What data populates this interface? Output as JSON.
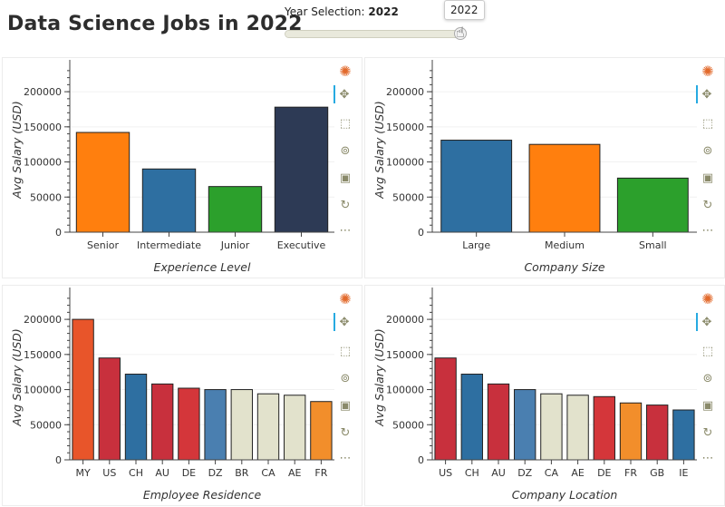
{
  "app": {
    "title": "Data Science Jobs in 2022"
  },
  "slider": {
    "label": "Year Selection: ",
    "value": "2022",
    "tooltip": "2022",
    "position": 1.0
  },
  "toolbar_icons": [
    "bokeh-logo-icon",
    "pan-icon",
    "box-zoom-icon",
    "wheel-zoom-icon",
    "save-icon",
    "reset-icon",
    "more-icon"
  ],
  "chart_data": [
    {
      "type": "bar",
      "xlabel": "Experience Level",
      "ylabel": "Avg Salary (USD)",
      "ylim": [
        0,
        235000
      ],
      "yticks": [
        0,
        50000,
        100000,
        150000,
        200000
      ],
      "categories": [
        "Senior",
        "Intermediate",
        "Junior",
        "Executive"
      ],
      "values": [
        142000,
        90000,
        65000,
        178000
      ],
      "colors": [
        "#ff7f0e",
        "#2e6fa1",
        "#2ca02c",
        "#2d3a55"
      ]
    },
    {
      "type": "bar",
      "xlabel": "Company Size",
      "ylabel": "Avg Salary (USD)",
      "ylim": [
        0,
        235000
      ],
      "yticks": [
        0,
        50000,
        100000,
        150000,
        200000
      ],
      "categories": [
        "Large",
        "Medium",
        "Small"
      ],
      "values": [
        131000,
        125000,
        77000
      ],
      "colors": [
        "#2e6fa1",
        "#ff7f0e",
        "#2ca02c"
      ]
    },
    {
      "type": "bar",
      "xlabel": "Employee Residence",
      "ylabel": "Avg Salary (USD)",
      "ylim": [
        0,
        235000
      ],
      "yticks": [
        0,
        50000,
        100000,
        150000,
        200000
      ],
      "categories": [
        "MY",
        "US",
        "CH",
        "AU",
        "DE",
        "DZ",
        "BR",
        "CA",
        "AE",
        "FR"
      ],
      "values": [
        200000,
        145000,
        122000,
        108000,
        102000,
        100000,
        100000,
        94000,
        92000,
        83000
      ],
      "colors": [
        "#e8552a",
        "#c8303d",
        "#2e6fa1",
        "#c8303d",
        "#d4363a",
        "#4a7fb0",
        "#e2e2cc",
        "#e2e2cc",
        "#e2e2cc",
        "#f28e2b"
      ]
    },
    {
      "type": "bar",
      "xlabel": "Company Location",
      "ylabel": "Avg Salary (USD)",
      "ylim": [
        0,
        235000
      ],
      "yticks": [
        0,
        50000,
        100000,
        150000,
        200000
      ],
      "categories": [
        "US",
        "CH",
        "AU",
        "DZ",
        "CA",
        "AE",
        "DE",
        "FR",
        "GB",
        "IE"
      ],
      "values": [
        145000,
        122000,
        108000,
        100000,
        94000,
        92000,
        90000,
        81000,
        78000,
        71000
      ],
      "colors": [
        "#c8303d",
        "#2e6fa1",
        "#c8303d",
        "#4a7fb0",
        "#e2e2cc",
        "#e2e2cc",
        "#d4363a",
        "#f28e2b",
        "#c8303d",
        "#2e6fa1"
      ]
    }
  ]
}
